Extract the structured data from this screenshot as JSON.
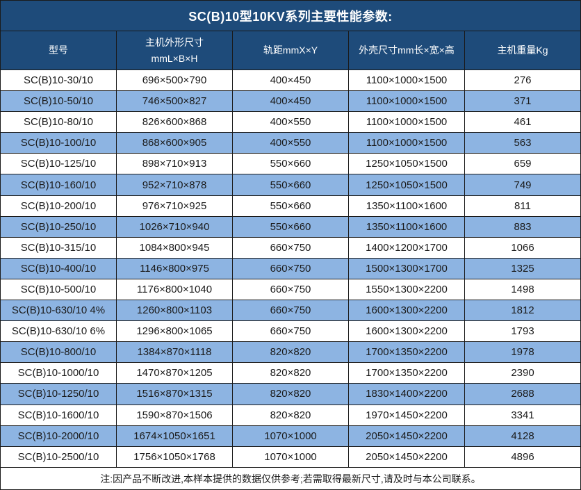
{
  "title": "SC(B)10型10KV系列主要性能参数:",
  "note": "注:因产品不断改进,本样本提供的数据仅供参考;若需取得最新尺寸,请及时与本公司联系。",
  "colors": {
    "header_bg": "#1E4B7A",
    "row_alt_bg": "#8DB4E2",
    "row_bg": "#FFFFFF",
    "grid_border": "#1A1A1A",
    "header_text": "#FFFFFF",
    "body_text": "#1A1A1A"
  },
  "table": {
    "headers": [
      "型号",
      "主机外形尺寸\nmmL×B×H",
      "轨距mmX×Y",
      "外壳尺寸mm长×宽×高",
      "主机重量Kg"
    ],
    "rows": [
      [
        "SC(B)10-30/10",
        "696×500×790",
        "400×450",
        "1100×1000×1500",
        "276"
      ],
      [
        "SC(B)10-50/10",
        "746×500×827",
        "400×450",
        "1100×1000×1500",
        "371"
      ],
      [
        "SC(B)10-80/10",
        "826×600×868",
        "400×550",
        "1100×1000×1500",
        "461"
      ],
      [
        "SC(B)10-100/10",
        "868×600×905",
        "400×550",
        "1100×1000×1500",
        "563"
      ],
      [
        "SC(B)10-125/10",
        "898×710×913",
        "550×660",
        "1250×1050×1500",
        "659"
      ],
      [
        "SC(B)10-160/10",
        "952×710×878",
        "550×660",
        "1250×1050×1500",
        "749"
      ],
      [
        "SC(B)10-200/10",
        "976×710×925",
        "550×660",
        "1350×1100×1600",
        "811"
      ],
      [
        "SC(B)10-250/10",
        "1026×710×940",
        "550×660",
        "1350×1100×1600",
        "883"
      ],
      [
        "SC(B)10-315/10",
        "1084×800×945",
        "660×750",
        "1400×1200×1700",
        "1066"
      ],
      [
        "SC(B)10-400/10",
        "1146×800×975",
        "660×750",
        "1500×1300×1700",
        "1325"
      ],
      [
        "SC(B)10-500/10",
        "1176×800×1040",
        "660×750",
        "1550×1300×2200",
        "1498"
      ],
      [
        "SC(B)10-630/10 4%",
        "1260×800×1103",
        "660×750",
        "1600×1300×2200",
        "1812"
      ],
      [
        "SC(B)10-630/10 6%",
        "1296×800×1065",
        "660×750",
        "1600×1300×2200",
        "1793"
      ],
      [
        "SC(B)10-800/10",
        "1384×870×1118",
        "820×820",
        "1700×1350×2200",
        "1978"
      ],
      [
        "SC(B)10-1000/10",
        "1470×870×1205",
        "820×820",
        "1700×1350×2200",
        "2390"
      ],
      [
        "SC(B)10-1250/10",
        "1516×870×1315",
        "820×820",
        "1830×1400×2200",
        "2688"
      ],
      [
        "SC(B)10-1600/10",
        "1590×870×1506",
        "820×820",
        "1970×1450×2200",
        "3341"
      ],
      [
        "SC(B)10-2000/10",
        "1674×1050×1651",
        "1070×1000",
        "2050×1450×2200",
        "4128"
      ],
      [
        "SC(B)10-2500/10",
        "1756×1050×1768",
        "1070×1000",
        "2050×1450×2200",
        "4896"
      ]
    ]
  }
}
